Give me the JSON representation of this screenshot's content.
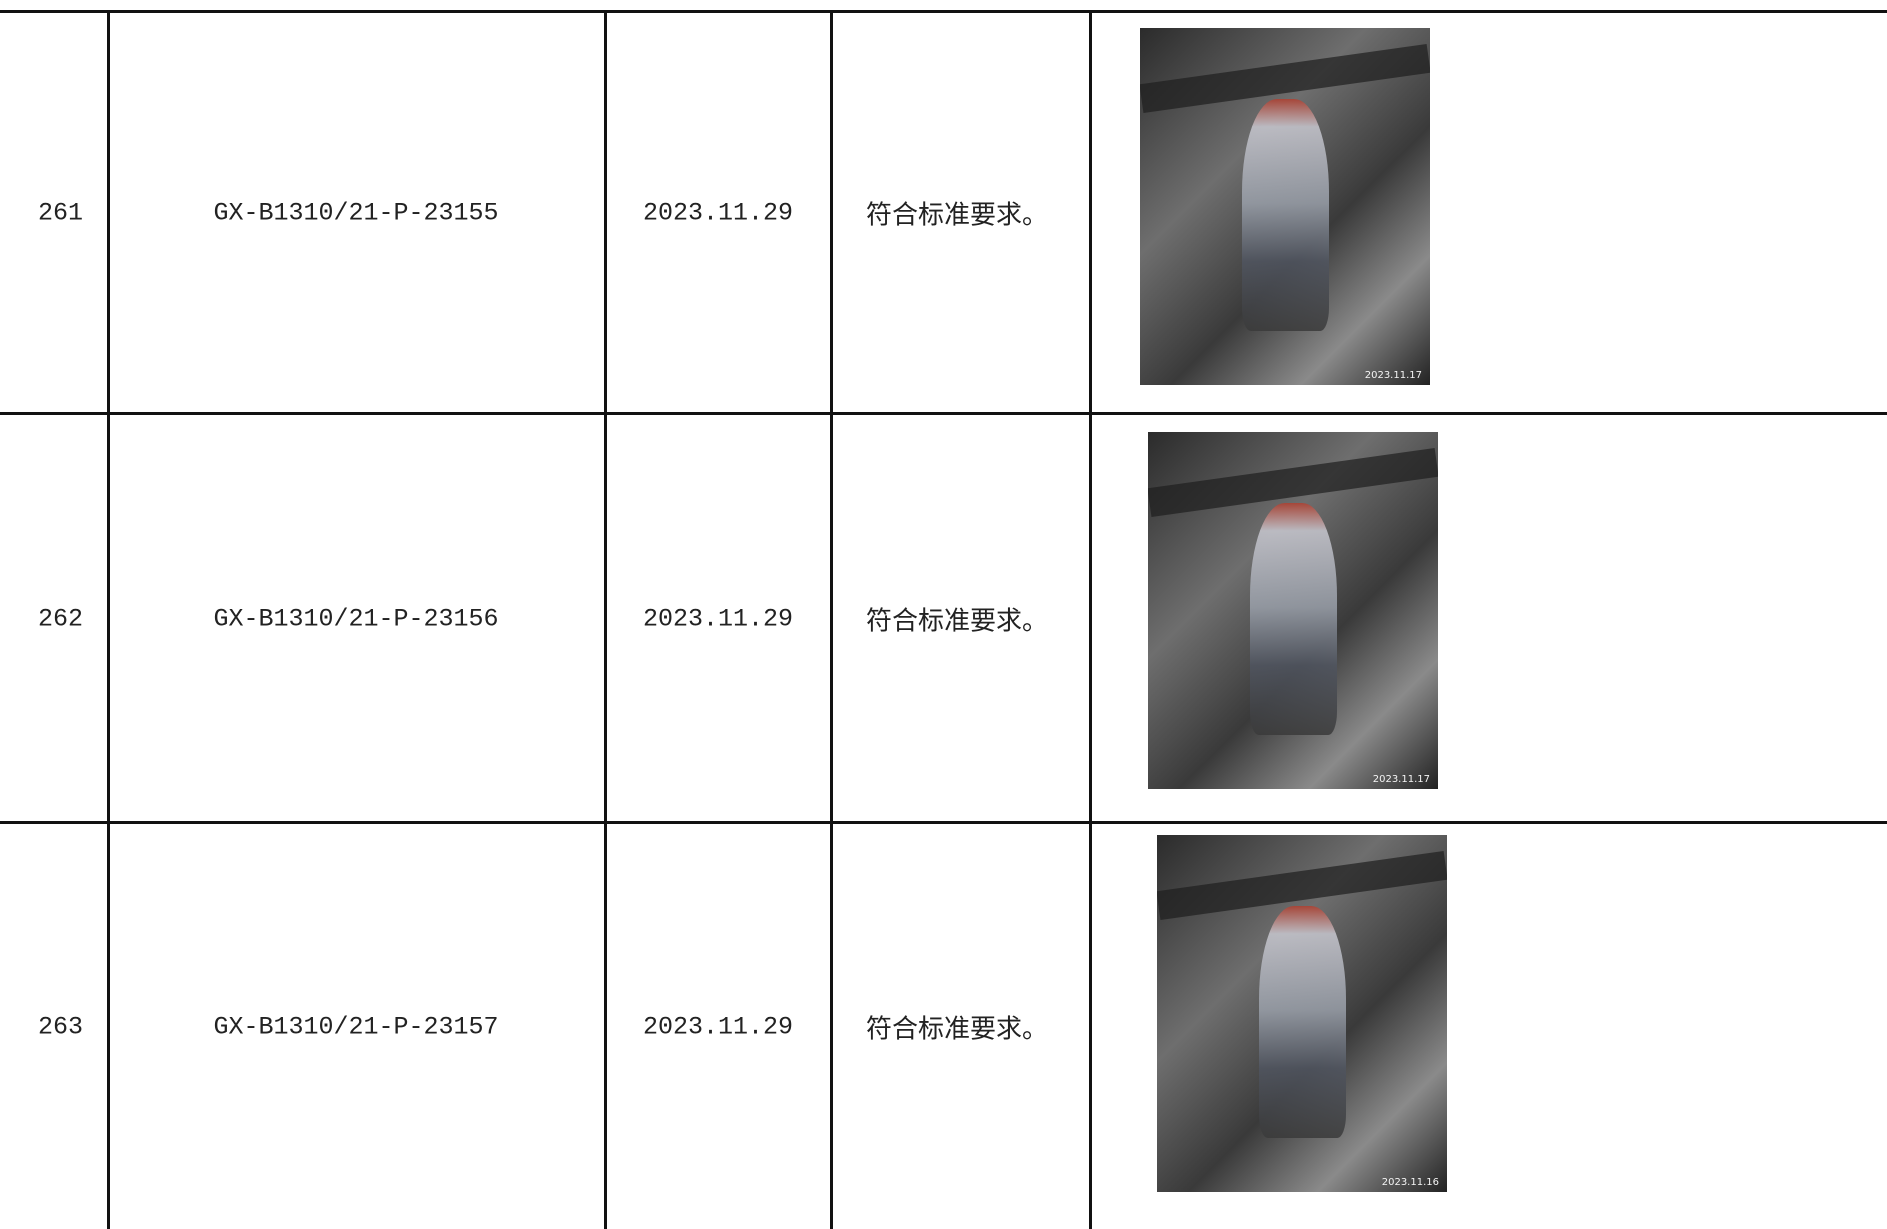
{
  "table": {
    "rows": [
      [
        "261",
        "GX-B1310/21-P-23155",
        "2023.11.29",
        "符合标准要求。",
        "2023.11.17"
      ],
      [
        "262",
        "GX-B1310/21-P-23156",
        "2023.11.29",
        "符合标准要求。",
        "2023.11.17"
      ],
      [
        "263",
        "GX-B1310/21-P-23157",
        "2023.11.29",
        "符合标准要求。",
        "2023.11.16"
      ]
    ]
  }
}
